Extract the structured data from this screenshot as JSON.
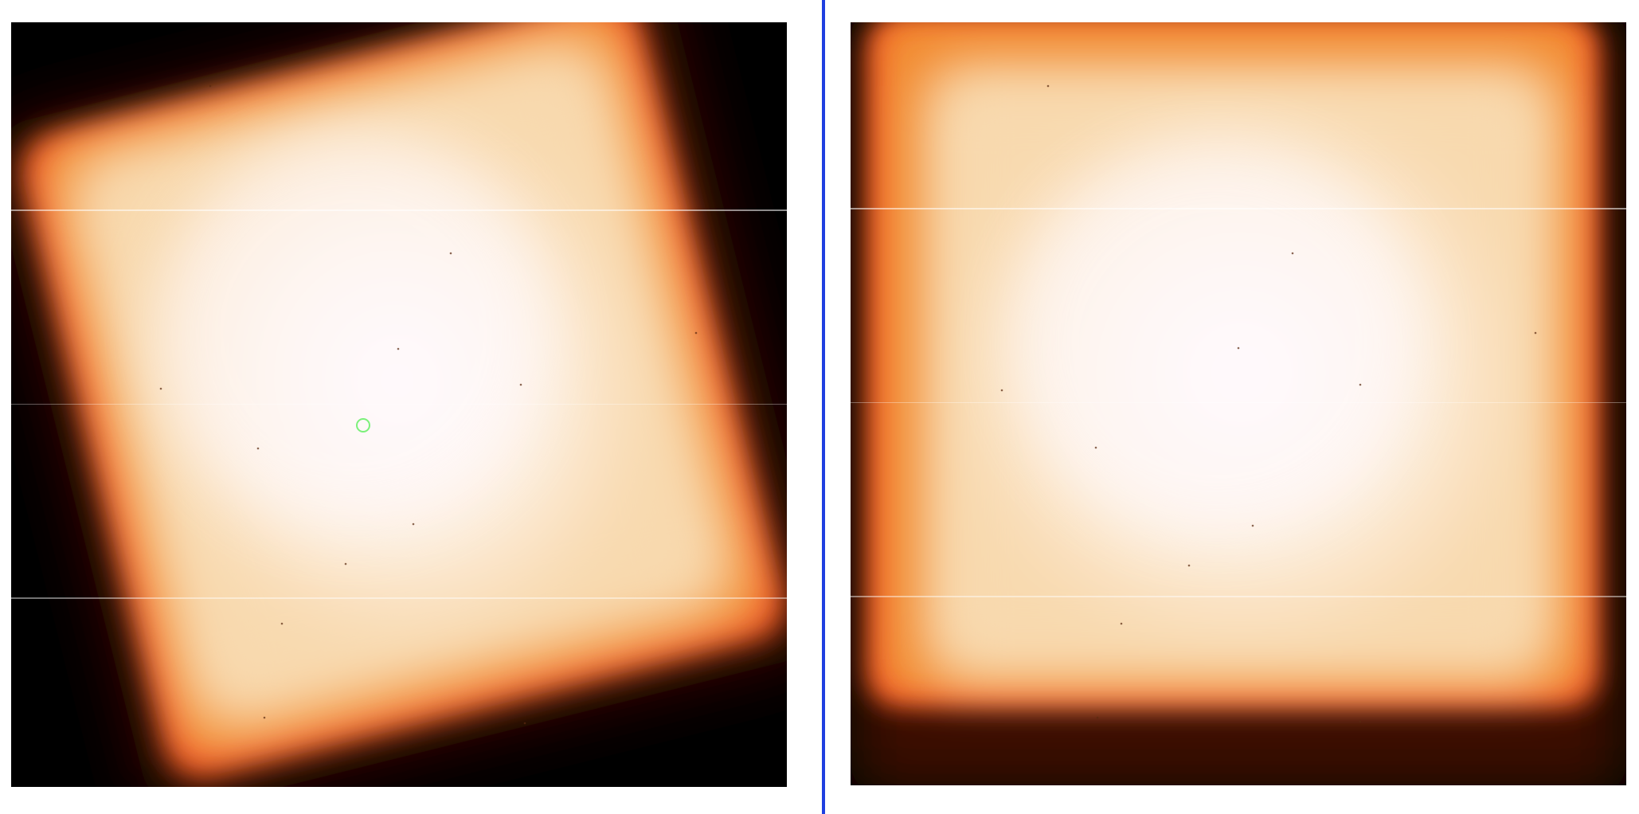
{
  "colors": {
    "divider": "#1f3fe0",
    "background": "#000000",
    "marker": "#7cf07a",
    "colormap": [
      "#000000",
      "#3a0c02",
      "#b8360f",
      "#ef5a25",
      "#f2892f",
      "#f6c889",
      "#fbe8cf",
      "#fffaff"
    ]
  },
  "panels": [
    {
      "name": "left-frame",
      "description_icon": "rotated-square-flat-field",
      "rotation_deg": -14,
      "has_marker": true
    },
    {
      "name": "right-frame",
      "description_icon": "aligned-square-flat-field",
      "rotation_deg": 0,
      "has_marker": false
    }
  ]
}
